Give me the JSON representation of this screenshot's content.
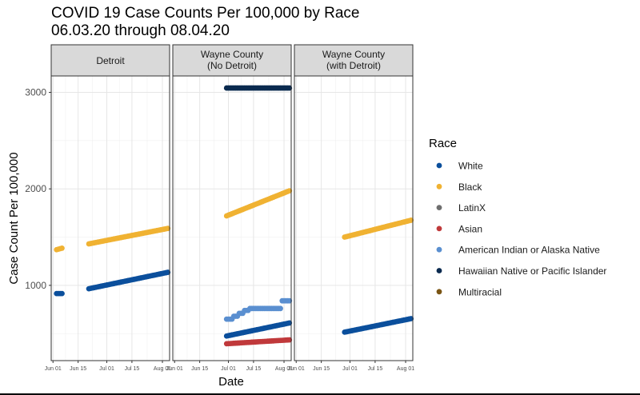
{
  "chart_data": {
    "type": "scatter",
    "title_line1": "COVID 19 Case Counts Per 100,000 by Race",
    "title_line2": "06.03.20 through 08.04.20",
    "xlabel": "Date",
    "ylabel": "Case Count Per 100,000",
    "legend_title": "Race",
    "legend_position": "right",
    "grid": true,
    "x_ticks": [
      {
        "label": "Jun 01",
        "day": 1
      },
      {
        "label": "Jun 15",
        "day": 15
      },
      {
        "label": "Jul 01",
        "day": 31
      },
      {
        "label": "Jul 15",
        "day": 45
      },
      {
        "label": "Aug 01",
        "day": 62
      }
    ],
    "xlim_days": [
      0,
      66
    ],
    "y_ticks": [
      1000,
      2000,
      3000
    ],
    "ylim": [
      220,
      3170
    ],
    "colors": {
      "White": "#0b4f9c",
      "Black": "#f0b232",
      "LatinX": "#6e6e6e",
      "Asian": "#c0393b",
      "American Indian or Alaska Native": "#5a8fd0",
      "Hawaiian Native or Pacific Islander": "#0a2a4f",
      "Multiracial": "#7a5514"
    },
    "legend": [
      "White",
      "Black",
      "LatinX",
      "Asian",
      "American Indian or Alaska Native",
      "Hawaiian Native or Pacific Islander",
      "Multiracial"
    ],
    "panels": [
      {
        "strip_line1": "Detroit",
        "strip_line2": "",
        "series": [
          {
            "name": "Black",
            "segments": [
              {
                "start_day": 3,
                "end_day": 6,
                "start_value": 1370,
                "end_value": 1385
              },
              {
                "start_day": 21,
                "end_day": 65,
                "start_value": 1430,
                "end_value": 1590
              }
            ]
          },
          {
            "name": "White",
            "segments": [
              {
                "start_day": 3,
                "end_day": 6,
                "start_value": 915,
                "end_value": 915
              },
              {
                "start_day": 21,
                "end_day": 65,
                "start_value": 965,
                "end_value": 1135
              }
            ]
          }
        ]
      },
      {
        "strip_line1": "Wayne County",
        "strip_line2": "(No Detroit)",
        "series": [
          {
            "name": "Hawaiian Native or Pacific Islander",
            "segments": [
              {
                "start_day": 30,
                "end_day": 65,
                "start_value": 3045,
                "end_value": 3045
              }
            ]
          },
          {
            "name": "Black",
            "segments": [
              {
                "start_day": 30,
                "end_day": 65,
                "start_value": 1720,
                "end_value": 1980
              }
            ]
          },
          {
            "name": "American Indian or Alaska Native",
            "steps": [
              [
                30,
                650
              ],
              [
                31,
                650
              ],
              [
                32,
                650
              ],
              [
                33,
                650
              ],
              [
                34,
                680
              ],
              [
                35,
                680
              ],
              [
                36,
                680
              ],
              [
                37,
                710
              ],
              [
                38,
                710
              ],
              [
                39,
                710
              ],
              [
                40,
                740
              ],
              [
                41,
                740
              ],
              [
                42,
                740
              ],
              [
                43,
                760
              ],
              [
                44,
                760
              ],
              [
                45,
                760
              ],
              [
                46,
                760
              ],
              [
                47,
                760
              ],
              [
                48,
                760
              ],
              [
                49,
                760
              ],
              [
                50,
                760
              ],
              [
                51,
                760
              ],
              [
                52,
                760
              ],
              [
                53,
                760
              ],
              [
                54,
                760
              ],
              [
                55,
                760
              ],
              [
                56,
                760
              ],
              [
                57,
                760
              ],
              [
                58,
                760
              ],
              [
                59,
                760
              ],
              [
                60,
                760
              ],
              [
                61,
                840
              ],
              [
                62,
                840
              ],
              [
                63,
                840
              ],
              [
                64,
                840
              ],
              [
                65,
                840
              ]
            ]
          },
          {
            "name": "White",
            "segments": [
              {
                "start_day": 30,
                "end_day": 65,
                "start_value": 475,
                "end_value": 610
              }
            ]
          },
          {
            "name": "Asian",
            "segments": [
              {
                "start_day": 30,
                "end_day": 65,
                "start_value": 395,
                "end_value": 435
              }
            ]
          }
        ]
      },
      {
        "strip_line1": "Wayne County",
        "strip_line2": "(with Detroit)",
        "series": [
          {
            "name": "Black",
            "segments": [
              {
                "start_day": 28,
                "end_day": 65,
                "start_value": 1500,
                "end_value": 1675
              }
            ]
          },
          {
            "name": "White",
            "segments": [
              {
                "start_day": 28,
                "end_day": 65,
                "start_value": 515,
                "end_value": 655
              }
            ]
          }
        ]
      }
    ]
  }
}
